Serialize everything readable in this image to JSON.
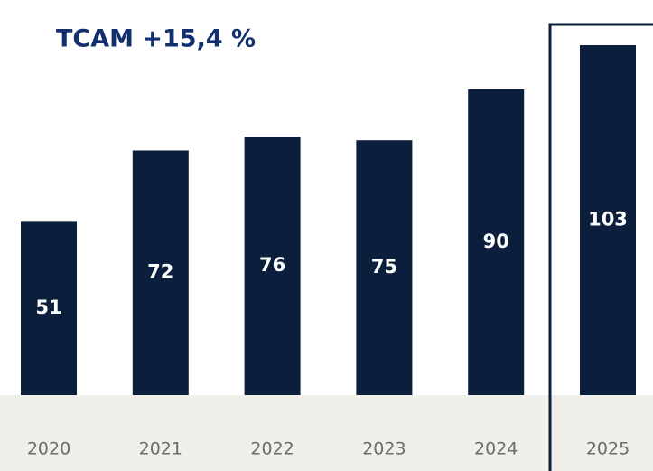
{
  "chart_data": {
    "type": "bar",
    "title": "TCAM +15,4 %",
    "categories": [
      "2020",
      "2021",
      "2022",
      "2023",
      "2024",
      "2025"
    ],
    "values": [
      51,
      72,
      76,
      75,
      90,
      103
    ],
    "color": "#0b1f3d"
  }
}
